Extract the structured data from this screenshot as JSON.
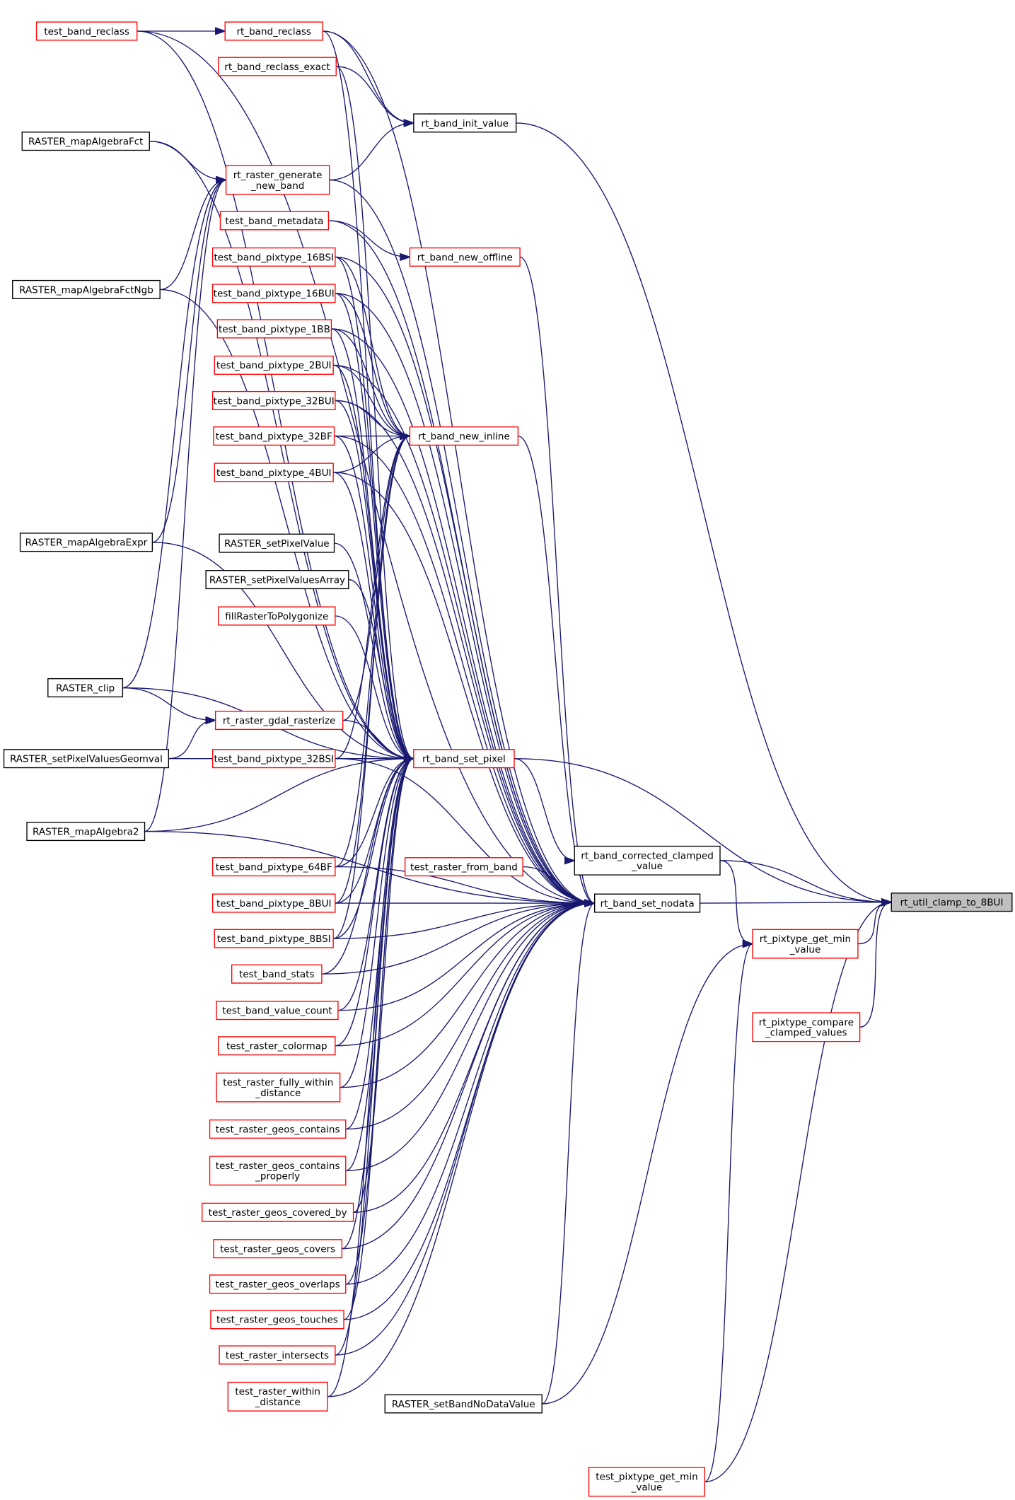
{
  "colors": {
    "edge": "#191970",
    "caller_border_red": "#ff0000",
    "border_black": "#000000",
    "focus_fill": "#bfbfbf"
  },
  "nodes": [
    {
      "id": "test_band_reclass",
      "lines": [
        "test_band_reclass"
      ],
      "style": "red"
    },
    {
      "id": "RASTER_mapAlgebraFct",
      "lines": [
        "RASTER_mapAlgebraFct"
      ],
      "style": "black"
    },
    {
      "id": "RASTER_mapAlgebraFctNgb",
      "lines": [
        "RASTER_mapAlgebraFctNgb"
      ],
      "style": "black"
    },
    {
      "id": "RASTER_mapAlgebraExpr",
      "lines": [
        "RASTER_mapAlgebraExpr"
      ],
      "style": "black"
    },
    {
      "id": "RASTER_clip",
      "lines": [
        "RASTER_clip"
      ],
      "style": "black"
    },
    {
      "id": "RASTER_setPixelValuesGeomval",
      "lines": [
        "RASTER_setPixelValuesGeomval"
      ],
      "style": "black"
    },
    {
      "id": "RASTER_mapAlgebra2",
      "lines": [
        "RASTER_mapAlgebra2"
      ],
      "style": "black"
    },
    {
      "id": "rt_band_reclass",
      "lines": [
        "rt_band_reclass"
      ],
      "style": "red"
    },
    {
      "id": "rt_band_reclass_exact",
      "lines": [
        "rt_band_reclass_exact"
      ],
      "style": "red"
    },
    {
      "id": "rt_raster_generate_new_band",
      "lines": [
        "rt_raster_generate",
        "_new_band"
      ],
      "style": "red"
    },
    {
      "id": "test_band_metadata",
      "lines": [
        "test_band_metadata"
      ],
      "style": "red"
    },
    {
      "id": "test_band_pixtype_16BSI",
      "lines": [
        "test_band_pixtype_16BSI"
      ],
      "style": "red"
    },
    {
      "id": "test_band_pixtype_16BUI",
      "lines": [
        "test_band_pixtype_16BUI"
      ],
      "style": "red"
    },
    {
      "id": "test_band_pixtype_1BB",
      "lines": [
        "test_band_pixtype_1BB"
      ],
      "style": "red"
    },
    {
      "id": "test_band_pixtype_2BUI",
      "lines": [
        "test_band_pixtype_2BUI"
      ],
      "style": "red"
    },
    {
      "id": "test_band_pixtype_32BUI",
      "lines": [
        "test_band_pixtype_32BUI"
      ],
      "style": "red"
    },
    {
      "id": "test_band_pixtype_32BF",
      "lines": [
        "test_band_pixtype_32BF"
      ],
      "style": "red"
    },
    {
      "id": "test_band_pixtype_4BUI",
      "lines": [
        "test_band_pixtype_4BUI"
      ],
      "style": "red"
    },
    {
      "id": "RASTER_setPixelValue",
      "lines": [
        "RASTER_setPixelValue"
      ],
      "style": "black"
    },
    {
      "id": "RASTER_setPixelValuesArray",
      "lines": [
        "RASTER_setPixelValuesArray"
      ],
      "style": "black"
    },
    {
      "id": "fillRasterToPolygonize",
      "lines": [
        "fillRasterToPolygonize"
      ],
      "style": "red"
    },
    {
      "id": "rt_raster_gdal_rasterize",
      "lines": [
        "rt_raster_gdal_rasterize"
      ],
      "style": "red"
    },
    {
      "id": "test_band_pixtype_32BSI",
      "lines": [
        "test_band_pixtype_32BSI"
      ],
      "style": "red"
    },
    {
      "id": "test_band_pixtype_64BF",
      "lines": [
        "test_band_pixtype_64BF"
      ],
      "style": "red"
    },
    {
      "id": "test_band_pixtype_8BUI",
      "lines": [
        "test_band_pixtype_8BUI"
      ],
      "style": "red"
    },
    {
      "id": "test_band_pixtype_8BSI",
      "lines": [
        "test_band_pixtype_8BSI"
      ],
      "style": "red"
    },
    {
      "id": "test_band_stats",
      "lines": [
        "test_band_stats"
      ],
      "style": "red"
    },
    {
      "id": "test_band_value_count",
      "lines": [
        "test_band_value_count"
      ],
      "style": "red"
    },
    {
      "id": "test_raster_colormap",
      "lines": [
        "test_raster_colormap"
      ],
      "style": "red"
    },
    {
      "id": "test_raster_fully_within_distance",
      "lines": [
        "test_raster_fully_within",
        "_distance"
      ],
      "style": "red"
    },
    {
      "id": "test_raster_geos_contains",
      "lines": [
        "test_raster_geos_contains"
      ],
      "style": "red"
    },
    {
      "id": "test_raster_geos_contains_properly",
      "lines": [
        "test_raster_geos_contains",
        "_properly"
      ],
      "style": "red"
    },
    {
      "id": "test_raster_geos_covered_by",
      "lines": [
        "test_raster_geos_covered_by"
      ],
      "style": "red"
    },
    {
      "id": "test_raster_geos_covers",
      "lines": [
        "test_raster_geos_covers"
      ],
      "style": "red"
    },
    {
      "id": "test_raster_geos_overlaps",
      "lines": [
        "test_raster_geos_overlaps"
      ],
      "style": "red"
    },
    {
      "id": "test_raster_geos_touches",
      "lines": [
        "test_raster_geos_touches"
      ],
      "style": "red"
    },
    {
      "id": "test_raster_intersects",
      "lines": [
        "test_raster_intersects"
      ],
      "style": "red"
    },
    {
      "id": "test_raster_within_distance",
      "lines": [
        "test_raster_within",
        "_distance"
      ],
      "style": "red"
    },
    {
      "id": "rt_band_init_value",
      "lines": [
        "rt_band_init_value"
      ],
      "style": "black"
    },
    {
      "id": "rt_band_new_offline",
      "lines": [
        "rt_band_new_offline"
      ],
      "style": "red"
    },
    {
      "id": "rt_band_new_inline",
      "lines": [
        "rt_band_new_inline"
      ],
      "style": "red"
    },
    {
      "id": "rt_band_set_pixel",
      "lines": [
        "rt_band_set_pixel"
      ],
      "style": "red"
    },
    {
      "id": "test_raster_from_band",
      "lines": [
        "test_raster_from_band"
      ],
      "style": "red"
    },
    {
      "id": "RASTER_setBandNoDataValue",
      "lines": [
        "RASTER_setBandNoDataValue"
      ],
      "style": "black"
    },
    {
      "id": "rt_band_corrected_clamped_value",
      "lines": [
        "rt_band_corrected_clamped",
        "_value"
      ],
      "style": "black"
    },
    {
      "id": "rt_band_set_nodata",
      "lines": [
        "rt_band_set_nodata"
      ],
      "style": "black"
    },
    {
      "id": "rt_pixtype_get_min_value",
      "lines": [
        "rt_pixtype_get_min",
        "_value"
      ],
      "style": "red"
    },
    {
      "id": "rt_pixtype_compare_clamped_values",
      "lines": [
        "rt_pixtype_compare",
        "_clamped_values"
      ],
      "style": "red"
    },
    {
      "id": "test_pixtype_get_min_value",
      "lines": [
        "test_pixtype_get_min",
        "_value"
      ],
      "style": "red"
    },
    {
      "id": "rt_util_clamp_to_8BUI",
      "lines": [
        "rt_util_clamp_to_8BUI"
      ],
      "style": "focus"
    }
  ],
  "edges": [
    [
      "test_band_reclass",
      "rt_band_reclass"
    ],
    [
      "test_band_reclass",
      "rt_band_set_pixel"
    ],
    [
      "test_band_reclass",
      "rt_band_set_nodata"
    ],
    [
      "rt_band_reclass",
      "rt_band_init_value"
    ],
    [
      "rt_band_reclass",
      "rt_band_set_pixel"
    ],
    [
      "rt_band_reclass",
      "rt_band_set_nodata"
    ],
    [
      "rt_band_reclass_exact",
      "rt_band_init_value"
    ],
    [
      "rt_band_reclass_exact",
      "rt_band_set_pixel"
    ],
    [
      "RASTER_mapAlgebraFct",
      "rt_raster_generate_new_band"
    ],
    [
      "RASTER_mapAlgebraFct",
      "rt_band_set_pixel"
    ],
    [
      "RASTER_mapAlgebraFctNgb",
      "rt_raster_generate_new_band"
    ],
    [
      "RASTER_mapAlgebraFctNgb",
      "rt_band_set_pixel"
    ],
    [
      "RASTER_mapAlgebraExpr",
      "rt_raster_generate_new_band"
    ],
    [
      "RASTER_mapAlgebraExpr",
      "rt_band_set_pixel"
    ],
    [
      "RASTER_clip",
      "rt_raster_generate_new_band"
    ],
    [
      "RASTER_clip",
      "rt_raster_gdal_rasterize"
    ],
    [
      "RASTER_clip",
      "rt_band_set_pixel"
    ],
    [
      "RASTER_setPixelValuesGeomval",
      "rt_raster_gdal_rasterize"
    ],
    [
      "RASTER_setPixelValuesGeomval",
      "rt_band_set_pixel"
    ],
    [
      "RASTER_mapAlgebra2",
      "rt_raster_generate_new_band"
    ],
    [
      "RASTER_mapAlgebra2",
      "rt_band_set_pixel"
    ],
    [
      "RASTER_mapAlgebra2",
      "rt_band_set_nodata"
    ],
    [
      "rt_raster_generate_new_band",
      "rt_band_init_value"
    ],
    [
      "rt_raster_generate_new_band",
      "rt_band_set_nodata"
    ],
    [
      "test_band_metadata",
      "rt_band_new_offline"
    ],
    [
      "test_band_metadata",
      "rt_band_set_nodata"
    ],
    [
      "test_band_pixtype_16BSI",
      "rt_band_new_inline"
    ],
    [
      "test_band_pixtype_16BSI",
      "rt_band_set_pixel"
    ],
    [
      "test_band_pixtype_16BSI",
      "rt_band_set_nodata"
    ],
    [
      "test_band_pixtype_16BUI",
      "rt_band_new_inline"
    ],
    [
      "test_band_pixtype_16BUI",
      "rt_band_set_pixel"
    ],
    [
      "test_band_pixtype_16BUI",
      "rt_band_set_nodata"
    ],
    [
      "test_band_pixtype_1BB",
      "rt_band_new_inline"
    ],
    [
      "test_band_pixtype_1BB",
      "rt_band_set_pixel"
    ],
    [
      "test_band_pixtype_1BB",
      "rt_band_set_nodata"
    ],
    [
      "test_band_pixtype_2BUI",
      "rt_band_new_inline"
    ],
    [
      "test_band_pixtype_2BUI",
      "rt_band_set_pixel"
    ],
    [
      "test_band_pixtype_2BUI",
      "rt_band_set_nodata"
    ],
    [
      "test_band_pixtype_32BUI",
      "rt_band_new_inline"
    ],
    [
      "test_band_pixtype_32BUI",
      "rt_band_set_pixel"
    ],
    [
      "test_band_pixtype_32BUI",
      "rt_band_set_nodata"
    ],
    [
      "test_band_pixtype_32BF",
      "rt_band_new_inline"
    ],
    [
      "test_band_pixtype_32BF",
      "rt_band_set_pixel"
    ],
    [
      "test_band_pixtype_32BF",
      "rt_band_set_nodata"
    ],
    [
      "test_band_pixtype_4BUI",
      "rt_band_new_inline"
    ],
    [
      "test_band_pixtype_4BUI",
      "rt_band_set_pixel"
    ],
    [
      "test_band_pixtype_4BUI",
      "rt_band_set_nodata"
    ],
    [
      "RASTER_setPixelValue",
      "rt_band_set_pixel"
    ],
    [
      "RASTER_setPixelValuesArray",
      "rt_band_set_pixel"
    ],
    [
      "fillRasterToPolygonize",
      "rt_band_set_pixel"
    ],
    [
      "rt_raster_gdal_rasterize",
      "rt_band_new_inline"
    ],
    [
      "rt_raster_gdal_rasterize",
      "rt_band_set_pixel"
    ],
    [
      "test_band_pixtype_32BSI",
      "rt_band_new_inline"
    ],
    [
      "test_band_pixtype_32BSI",
      "rt_band_set_pixel"
    ],
    [
      "test_band_pixtype_32BSI",
      "rt_band_set_nodata"
    ],
    [
      "test_band_pixtype_64BF",
      "rt_band_new_inline"
    ],
    [
      "test_band_pixtype_64BF",
      "rt_band_set_pixel"
    ],
    [
      "test_band_pixtype_64BF",
      "rt_band_set_nodata"
    ],
    [
      "test_band_pixtype_8BUI",
      "rt_band_new_inline"
    ],
    [
      "test_band_pixtype_8BUI",
      "rt_band_set_pixel"
    ],
    [
      "test_band_pixtype_8BUI",
      "rt_band_set_nodata"
    ],
    [
      "test_band_pixtype_8BSI",
      "rt_band_new_inline"
    ],
    [
      "test_band_pixtype_8BSI",
      "rt_band_set_pixel"
    ],
    [
      "test_band_pixtype_8BSI",
      "rt_band_set_nodata"
    ],
    [
      "test_band_stats",
      "rt_band_set_pixel"
    ],
    [
      "test_band_stats",
      "rt_band_set_nodata"
    ],
    [
      "test_band_value_count",
      "rt_band_set_pixel"
    ],
    [
      "test_band_value_count",
      "rt_band_set_nodata"
    ],
    [
      "test_raster_colormap",
      "rt_band_set_pixel"
    ],
    [
      "test_raster_colormap",
      "rt_band_set_nodata"
    ],
    [
      "test_raster_fully_within_distance",
      "rt_band_set_pixel"
    ],
    [
      "test_raster_fully_within_distance",
      "rt_band_set_nodata"
    ],
    [
      "test_raster_geos_contains",
      "rt_band_set_pixel"
    ],
    [
      "test_raster_geos_contains",
      "rt_band_set_nodata"
    ],
    [
      "test_raster_geos_contains_properly",
      "rt_band_set_pixel"
    ],
    [
      "test_raster_geos_contains_properly",
      "rt_band_set_nodata"
    ],
    [
      "test_raster_geos_covered_by",
      "rt_band_set_pixel"
    ],
    [
      "test_raster_geos_covered_by",
      "rt_band_set_nodata"
    ],
    [
      "test_raster_geos_covers",
      "rt_band_set_pixel"
    ],
    [
      "test_raster_geos_covers",
      "rt_band_set_nodata"
    ],
    [
      "test_raster_geos_overlaps",
      "rt_band_set_pixel"
    ],
    [
      "test_raster_geos_overlaps",
      "rt_band_set_nodata"
    ],
    [
      "test_raster_geos_touches",
      "rt_band_set_pixel"
    ],
    [
      "test_raster_geos_touches",
      "rt_band_set_nodata"
    ],
    [
      "test_raster_intersects",
      "rt_band_set_pixel"
    ],
    [
      "test_raster_intersects",
      "rt_band_set_nodata"
    ],
    [
      "test_raster_within_distance",
      "rt_band_set_pixel"
    ],
    [
      "test_raster_within_distance",
      "rt_band_set_nodata"
    ],
    [
      "rt_band_new_offline",
      "rt_band_set_nodata"
    ],
    [
      "rt_band_new_inline",
      "rt_band_set_nodata"
    ],
    [
      "test_raster_from_band",
      "rt_band_set_nodata"
    ],
    [
      "RASTER_setBandNoDataValue",
      "rt_band_set_nodata"
    ],
    [
      "RASTER_setBandNoDataValue",
      "rt_pixtype_get_min_value"
    ],
    [
      "rt_band_set_pixel",
      "rt_band_corrected_clamped_value"
    ],
    [
      "rt_band_set_pixel",
      "rt_util_clamp_to_8BUI"
    ],
    [
      "rt_band_init_value",
      "rt_util_clamp_to_8BUI"
    ],
    [
      "rt_band_corrected_clamped_value",
      "rt_pixtype_get_min_value"
    ],
    [
      "rt_band_corrected_clamped_value",
      "rt_util_clamp_to_8BUI"
    ],
    [
      "rt_band_set_nodata",
      "rt_util_clamp_to_8BUI"
    ],
    [
      "rt_pixtype_get_min_value",
      "rt_util_clamp_to_8BUI"
    ],
    [
      "rt_pixtype_compare_clamped_values",
      "rt_util_clamp_to_8BUI"
    ],
    [
      "test_pixtype_get_min_value",
      "rt_pixtype_get_min_value"
    ],
    [
      "test_pixtype_get_min_value",
      "rt_util_clamp_to_8BUI"
    ]
  ]
}
